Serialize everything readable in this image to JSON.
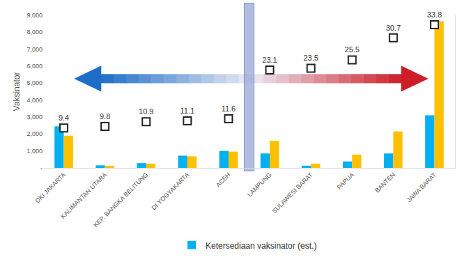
{
  "chart_data": {
    "type": "bar",
    "categories": [
      "DKI JAKARTA",
      "KALIMANTAN UTARA",
      "KEP. BANGKA BELITUNG",
      "DI YOGYAKARTA",
      "ACEH",
      "LAMPUNG",
      "SULAWESI BARAT",
      "PAPUA",
      "BANTEN",
      "JAWA BARAT"
    ],
    "series": [
      {
        "name": "Ketersediaan vaksinator (est.)",
        "color": "#00b0f0",
        "values": [
          2450,
          150,
          280,
          720,
          1000,
          850,
          130,
          380,
          850,
          3100
        ]
      },
      {
        "color": "#ffc000",
        "values": [
          1900,
          120,
          250,
          680,
          960,
          1600,
          250,
          780,
          2150,
          8650
        ]
      },
      {
        "type": "scatter",
        "axis": "y2",
        "marker": "square",
        "color": "#222222",
        "data_labels": true,
        "values": [
          9.4,
          9.8,
          10.9,
          11.1,
          11.6,
          23.1,
          23.5,
          25.5,
          30.7,
          33.8
        ]
      }
    ],
    "ylabel": "Vaksinator",
    "ylim": [
      0,
      9000
    ],
    "yticks": [
      {
        "value": 0,
        "label": "-"
      },
      {
        "value": 1000,
        "label": "1,000"
      },
      {
        "value": 2000,
        "label": "2,000"
      },
      {
        "value": 3000,
        "label": "3,000"
      },
      {
        "value": 4000,
        "label": "4,000"
      },
      {
        "value": 5000,
        "label": "5,000"
      },
      {
        "value": 6000,
        "label": "6,000"
      },
      {
        "value": 7000,
        "label": "7,000"
      },
      {
        "value": 8000,
        "label": "8,000"
      },
      {
        "value": 9000,
        "label": "9,000"
      }
    ],
    "y2lim": [
      0,
      36
    ],
    "y2ticks": [],
    "grid": false,
    "legend": "bottom"
  }
}
